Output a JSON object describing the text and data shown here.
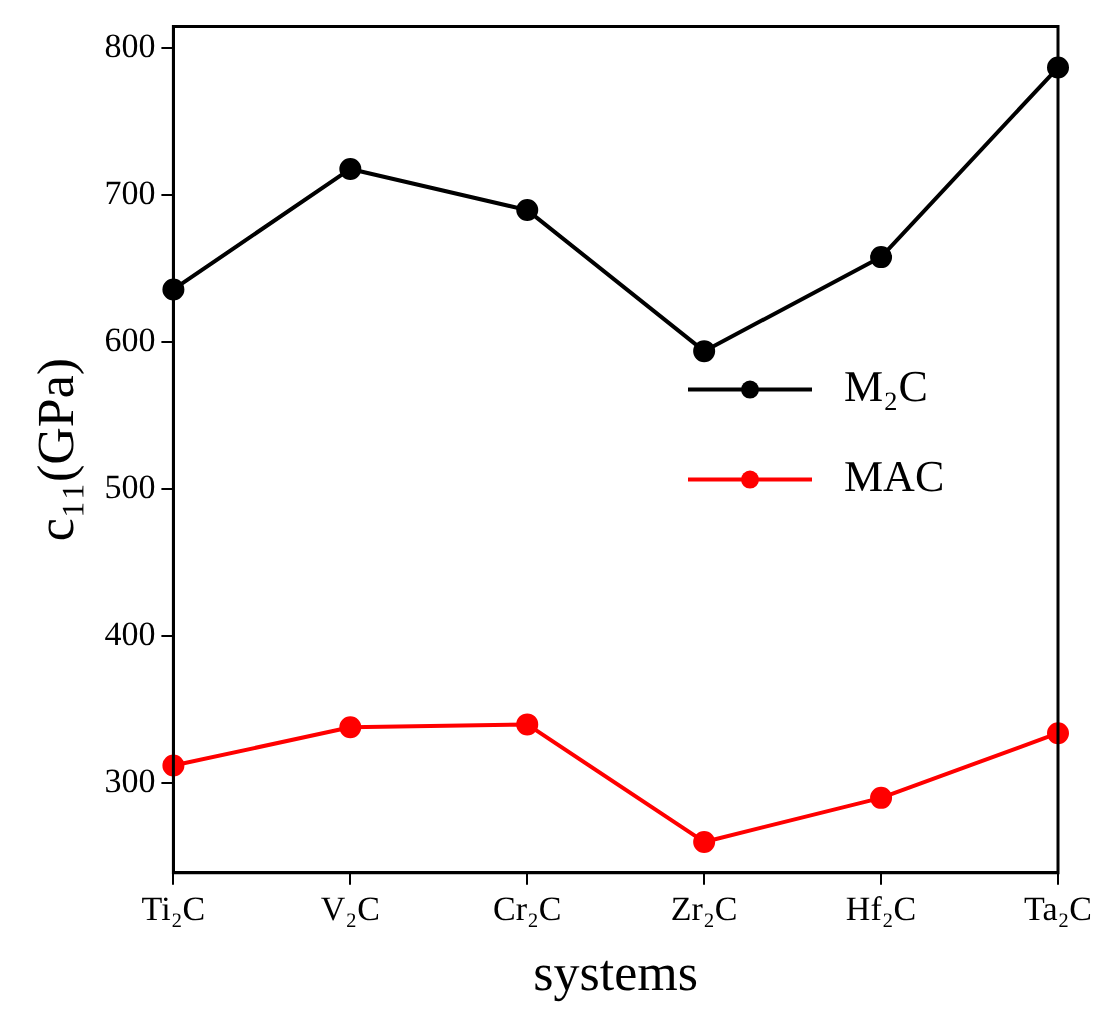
{
  "chart_data": {
    "type": "line",
    "xlabel": "systems",
    "ylabel": "c₁₁(GPa)",
    "categories": [
      "Ti₂C",
      "V₂C",
      "Cr₂C",
      "Zr₂C",
      "Hf₂C",
      "Ta₂C"
    ],
    "series": [
      {
        "name": "M₂C",
        "color": "#000000",
        "values": [
          636,
          718,
          690,
          594,
          658,
          787
        ]
      },
      {
        "name": "MAC",
        "color": "#ff0000",
        "values": [
          312,
          338,
          340,
          260,
          290,
          334
        ]
      }
    ],
    "ylim": [
      239,
      815
    ],
    "yticks": [
      300,
      400,
      500,
      600,
      700,
      800
    ],
    "grid": false,
    "legend": "right",
    "marker": "circle",
    "line_style": "solid"
  }
}
